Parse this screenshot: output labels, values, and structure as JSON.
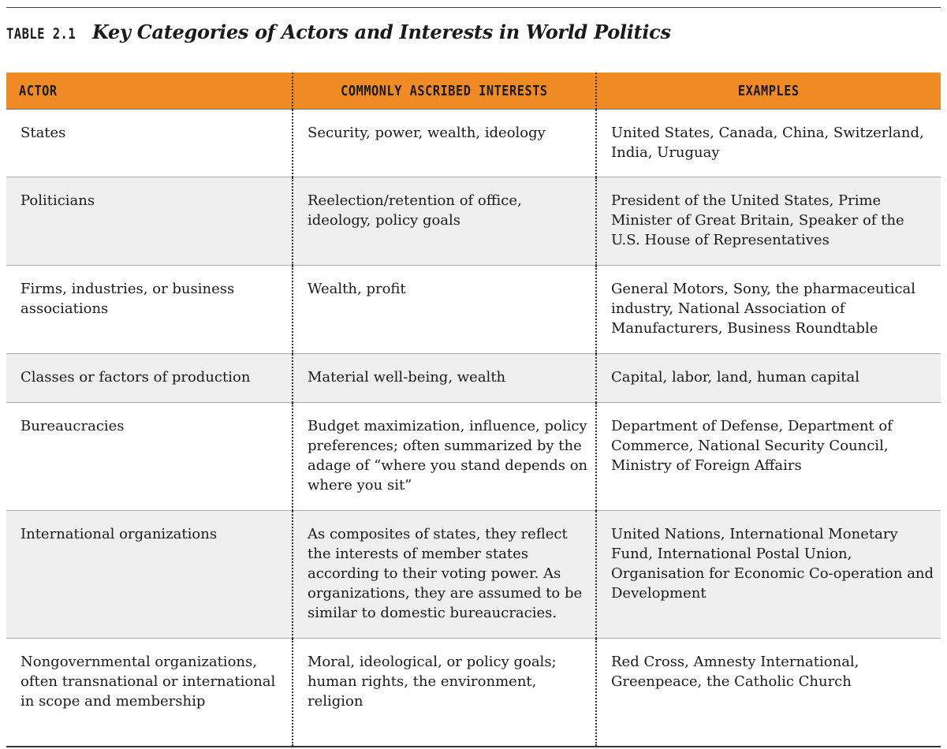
{
  "header": {
    "table_number": "TABLE 2.1",
    "title": "Key Categories of Actors and Interests in World Politics"
  },
  "columns": [
    "ACTOR",
    "COMMONLY ASCRIBED INTERESTS",
    "EXAMPLES"
  ],
  "rows": [
    {
      "actor": "States",
      "interests": "Security, power, wealth, ideology",
      "examples": "United States, Canada, China, Switzerland, India, Uruguay"
    },
    {
      "actor": "Politicians",
      "interests": "Reelection/retention of office, ideology, policy goals",
      "examples": "President of the United States, Prime Minister of Great Britain, Speaker of the U.S. House of Representatives"
    },
    {
      "actor": "Firms, industries, or business associations",
      "interests": "Wealth, profit",
      "examples": "General Motors, Sony, the pharmaceutical industry, National Association of Manufacturers, Business Roundtable"
    },
    {
      "actor": "Classes or factors of production",
      "interests": "Material well-being, wealth",
      "examples": "Capital, labor, land, human capital"
    },
    {
      "actor": "Bureaucracies",
      "interests": "Budget maximization, influence, policy preferences; often summarized by the adage of “where you stand depends on where you sit”",
      "examples": "Department of Defense, Department of Commerce, National Security Council, Ministry of Foreign Affairs"
    },
    {
      "actor": "International organizations",
      "interests": "As composites of states, they reflect the interests of member states according to their voting power. As organizations, they are assumed to be similar to domestic bureaucracies.",
      "examples": "United Nations, International Monetary Fund, International Postal Union, Organisation for Economic Co-operation and Development"
    },
    {
      "actor": "Nongovernmental organizations, often transnational or international in scope and membership",
      "interests": "Moral, ideological, or policy goals; human rights, the environment, religion",
      "examples": "Red Cross, Amnesty International, Greenpeace, the Catholic Church"
    }
  ],
  "colors": {
    "header_fill": "#f08a24",
    "stripe_fill": "#efefef"
  }
}
